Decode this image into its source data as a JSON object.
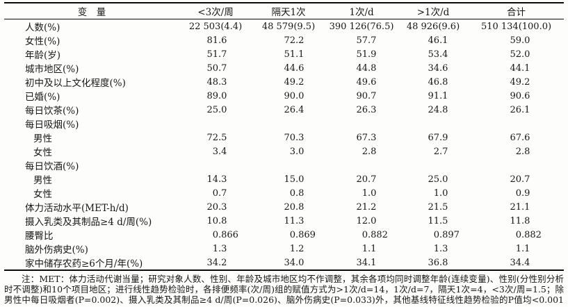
{
  "table": {
    "columns": [
      "变　量",
      "<3次/周",
      "隔天1次",
      "1次/d",
      ">1次/d",
      "合计"
    ],
    "rows": [
      {
        "label": "人数(%)",
        "indent": false,
        "align": "center",
        "values": [
          "22 503(4.4)",
          "48 579(9.5)",
          "390 126(76.5)",
          "48 926(9.6)",
          "510 134(100.0)"
        ]
      },
      {
        "label": "女性(%)",
        "indent": false,
        "align": "decimal",
        "values": [
          "81.6",
          "72.2",
          "57.7",
          "46.1",
          "59.0"
        ]
      },
      {
        "label": "年龄(岁)",
        "indent": false,
        "align": "decimal",
        "values": [
          "51.7",
          "51.1",
          "51.9",
          "53.4",
          "52.0"
        ]
      },
      {
        "label": "城市地区(%)",
        "indent": false,
        "align": "decimal",
        "values": [
          "50.7",
          "44.6",
          "44.8",
          "34.6",
          "44.1"
        ]
      },
      {
        "label": "初中及以上文化程度(%)",
        "indent": false,
        "align": "decimal",
        "values": [
          "48.3",
          "49.2",
          "49.6",
          "46.8",
          "49.2"
        ]
      },
      {
        "label": "已婚(%)",
        "indent": false,
        "align": "decimal",
        "values": [
          "89.0",
          "90.0",
          "90.7",
          "91.1",
          "90.6"
        ]
      },
      {
        "label": "每日饮茶(%)",
        "indent": false,
        "align": "decimal",
        "values": [
          "25.0",
          "26.4",
          "26.3",
          "24.8",
          "26.1"
        ]
      },
      {
        "label": "每日吸烟(%)",
        "indent": false,
        "align": "decimal",
        "values": [
          "",
          "",
          "",
          "",
          ""
        ]
      },
      {
        "label": "男性",
        "indent": true,
        "align": "decimal",
        "values": [
          "72.5",
          "70.3",
          "67.3",
          "67.9",
          "67.6"
        ]
      },
      {
        "label": "女性",
        "indent": true,
        "align": "decimal",
        "values": [
          "3.4",
          "3.0",
          "2.8",
          "2.7",
          "2.8"
        ]
      },
      {
        "label": "每日饮酒(%)",
        "indent": false,
        "align": "decimal",
        "values": [
          "",
          "",
          "",
          "",
          ""
        ]
      },
      {
        "label": "男性",
        "indent": true,
        "align": "decimal",
        "values": [
          "14.3",
          "15.0",
          "20.7",
          "25.0",
          "20.7"
        ]
      },
      {
        "label": "女性",
        "indent": true,
        "align": "decimal",
        "values": [
          "0.7",
          "0.8",
          "1.0",
          "1.0",
          "0.9"
        ]
      },
      {
        "label": "体力活动水平(MET-h/d)",
        "indent": false,
        "align": "decimal",
        "values": [
          "20.3",
          "20.8",
          "21.2",
          "21.5",
          "21.1"
        ]
      },
      {
        "label": "摄入乳类及其制品≥4 d/周(%)",
        "indent": false,
        "align": "decimal",
        "values": [
          "10.8",
          "11.3",
          "12.0",
          "11.5",
          "11.8"
        ]
      },
      {
        "label": "腰臀比",
        "indent": false,
        "align": "decimal",
        "values": [
          "0.866",
          "0.869",
          "0.882",
          "0.897",
          "0.882"
        ]
      },
      {
        "label": "脑外伤病史(%)",
        "indent": false,
        "align": "decimal",
        "values": [
          "1.3",
          "1.2",
          "1.1",
          "1.3",
          "1.1"
        ]
      },
      {
        "label": "家中储存农药≥6个月/年(%)",
        "indent": false,
        "align": "decimal",
        "values": [
          "34.2",
          "34.0",
          "34.1",
          "36.8",
          "34.4"
        ]
      }
    ]
  },
  "footnote": {
    "lines": [
      "注：MET：体力活动代谢当量；研究对象人数、性别、年龄及城市地区均不作调整，其余各项均同时调整年龄(连续变量)、性别(分性别分析",
      "时不调整)和10个项目地区；进行线性趋势检验时，各排便频率(次/周)组的赋值方式为>1次/d=14，1次/d=7，隔天1次=4，<3次/周=1.5；除",
      "男性中每日吸烟者(P=0.002)、摄入乳类及其制品≥4 d/周(P=0.026)、脑外伤病史(P=0.033)外，其他基线特征线性趋势检验的P值均<0.001"
    ]
  }
}
